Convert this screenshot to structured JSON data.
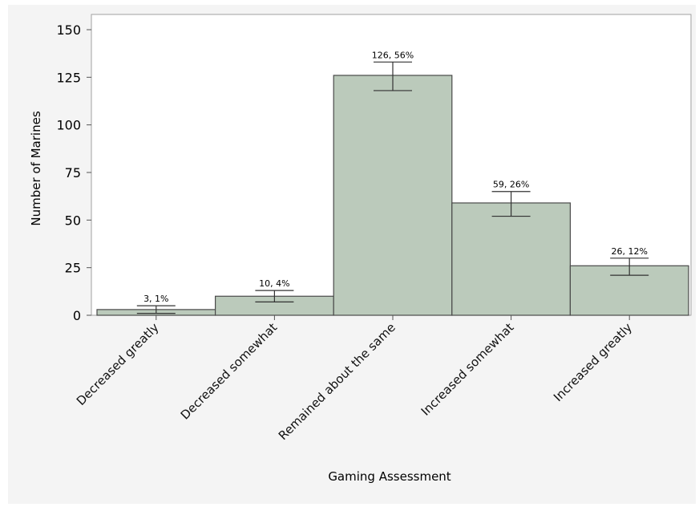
{
  "chart_data": {
    "type": "bar",
    "title": "",
    "xlabel": "Gaming Assessment",
    "ylabel": "Number of Marines",
    "categories": [
      "Decreased greatly",
      "Decreased somewhat",
      "Remained about the same",
      "Increased somewhat",
      "Increased greatly"
    ],
    "values": [
      3,
      10,
      126,
      59,
      26
    ],
    "data_labels": [
      "3, 1%",
      "10, 4%",
      "126, 56%",
      "59, 26%",
      "26, 12%"
    ],
    "error_bars": [
      [
        1,
        5
      ],
      [
        7,
        13
      ],
      [
        118,
        133
      ],
      [
        52,
        65
      ],
      [
        21,
        30
      ]
    ],
    "ylim": [
      0,
      158
    ],
    "yticks": [
      0,
      25,
      50,
      75,
      100,
      125,
      150
    ],
    "grid": false,
    "legend": "none",
    "colors": {
      "bar_fill": "#bbcabb",
      "bar_stroke": "#4a4a4a",
      "error_bar": "#333333",
      "background": "#f4f4f4",
      "plot_background": "#ffffff"
    }
  }
}
